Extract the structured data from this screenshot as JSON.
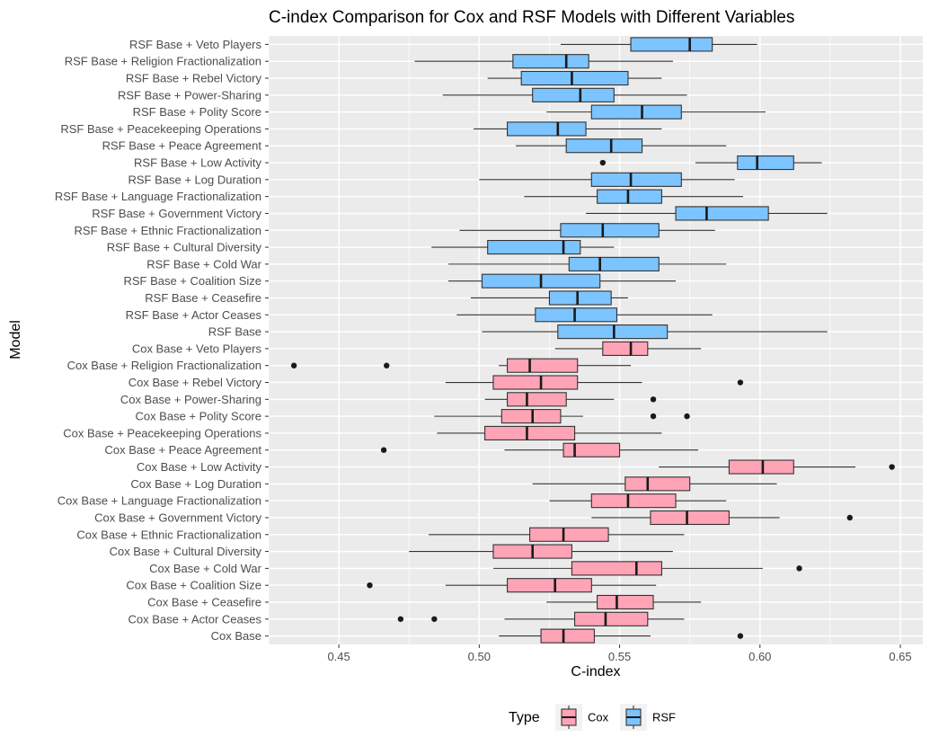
{
  "chart_data": {
    "type": "boxplot",
    "orientation": "horizontal",
    "title": "C-index Comparison for Cox and RSF Models with Different Variables",
    "xlabel": "C-index",
    "ylabel": "Model",
    "xlim": [
      0.425,
      0.658
    ],
    "x_ticks": [
      0.45,
      0.5,
      0.55,
      0.6,
      0.65
    ],
    "x_tick_labels": [
      "0.45",
      "0.50",
      "0.55",
      "0.60",
      "0.65"
    ],
    "grid": true,
    "legend": {
      "title": "Type",
      "position": "bottom",
      "entries": [
        {
          "label": "Cox",
          "color": "#FFA3B6"
        },
        {
          "label": "RSF",
          "color": "#7CC4FF"
        }
      ]
    },
    "colors": {
      "Cox": "#FFA3B6",
      "RSF": "#7CC4FF",
      "panel": "#EBEBEB",
      "grid": "#FFFFFF",
      "outline": "#333333"
    },
    "boxes": [
      {
        "label": "RSF Base + Veto Players",
        "type": "RSF",
        "whisker_low": 0.529,
        "q1": 0.554,
        "median": 0.575,
        "q3": 0.583,
        "whisker_high": 0.599,
        "outliers": []
      },
      {
        "label": "RSF Base + Religion Fractionalization",
        "type": "RSF",
        "whisker_low": 0.477,
        "q1": 0.512,
        "median": 0.531,
        "q3": 0.539,
        "whisker_high": 0.569,
        "outliers": []
      },
      {
        "label": "RSF Base + Rebel Victory",
        "type": "RSF",
        "whisker_low": 0.503,
        "q1": 0.515,
        "median": 0.533,
        "q3": 0.553,
        "whisker_high": 0.565,
        "outliers": []
      },
      {
        "label": "RSF Base + Power-Sharing",
        "type": "RSF",
        "whisker_low": 0.487,
        "q1": 0.519,
        "median": 0.536,
        "q3": 0.548,
        "whisker_high": 0.574,
        "outliers": []
      },
      {
        "label": "RSF Base + Polity Score",
        "type": "RSF",
        "whisker_low": 0.524,
        "q1": 0.54,
        "median": 0.558,
        "q3": 0.572,
        "whisker_high": 0.602,
        "outliers": []
      },
      {
        "label": "RSF Base + Peacekeeping Operations",
        "type": "RSF",
        "whisker_low": 0.498,
        "q1": 0.51,
        "median": 0.528,
        "q3": 0.538,
        "whisker_high": 0.565,
        "outliers": []
      },
      {
        "label": "RSF Base + Peace Agreement",
        "type": "RSF",
        "whisker_low": 0.513,
        "q1": 0.531,
        "median": 0.547,
        "q3": 0.558,
        "whisker_high": 0.588,
        "outliers": []
      },
      {
        "label": "RSF Base + Low Activity",
        "type": "RSF",
        "whisker_low": 0.577,
        "q1": 0.592,
        "median": 0.599,
        "q3": 0.612,
        "whisker_high": 0.622,
        "outliers": [
          0.544
        ]
      },
      {
        "label": "RSF Base + Log Duration",
        "type": "RSF",
        "whisker_low": 0.5,
        "q1": 0.54,
        "median": 0.554,
        "q3": 0.572,
        "whisker_high": 0.591,
        "outliers": []
      },
      {
        "label": "RSF Base + Language Fractionalization",
        "type": "RSF",
        "whisker_low": 0.516,
        "q1": 0.542,
        "median": 0.553,
        "q3": 0.565,
        "whisker_high": 0.594,
        "outliers": []
      },
      {
        "label": "RSF Base + Government Victory",
        "type": "RSF",
        "whisker_low": 0.538,
        "q1": 0.57,
        "median": 0.581,
        "q3": 0.603,
        "whisker_high": 0.624,
        "outliers": []
      },
      {
        "label": "RSF Base + Ethnic Fractionalization",
        "type": "RSF",
        "whisker_low": 0.493,
        "q1": 0.529,
        "median": 0.544,
        "q3": 0.564,
        "whisker_high": 0.584,
        "outliers": []
      },
      {
        "label": "RSF Base + Cultural Diversity",
        "type": "RSF",
        "whisker_low": 0.483,
        "q1": 0.503,
        "median": 0.53,
        "q3": 0.536,
        "whisker_high": 0.548,
        "outliers": []
      },
      {
        "label": "RSF Base + Cold War",
        "type": "RSF",
        "whisker_low": 0.489,
        "q1": 0.532,
        "median": 0.543,
        "q3": 0.564,
        "whisker_high": 0.588,
        "outliers": []
      },
      {
        "label": "RSF Base + Coalition Size",
        "type": "RSF",
        "whisker_low": 0.489,
        "q1": 0.501,
        "median": 0.522,
        "q3": 0.543,
        "whisker_high": 0.57,
        "outliers": []
      },
      {
        "label": "RSF Base + Ceasefire",
        "type": "RSF",
        "whisker_low": 0.497,
        "q1": 0.525,
        "median": 0.535,
        "q3": 0.547,
        "whisker_high": 0.553,
        "outliers": []
      },
      {
        "label": "RSF Base + Actor Ceases",
        "type": "RSF",
        "whisker_low": 0.492,
        "q1": 0.52,
        "median": 0.534,
        "q3": 0.549,
        "whisker_high": 0.583,
        "outliers": []
      },
      {
        "label": "RSF Base",
        "type": "RSF",
        "whisker_low": 0.501,
        "q1": 0.528,
        "median": 0.548,
        "q3": 0.567,
        "whisker_high": 0.624,
        "outliers": []
      },
      {
        "label": "Cox Base + Veto Players",
        "type": "Cox",
        "whisker_low": 0.527,
        "q1": 0.544,
        "median": 0.554,
        "q3": 0.56,
        "whisker_high": 0.579,
        "outliers": []
      },
      {
        "label": "Cox Base + Religion Fractionalization",
        "type": "Cox",
        "whisker_low": 0.507,
        "q1": 0.51,
        "median": 0.518,
        "q3": 0.535,
        "whisker_high": 0.554,
        "outliers": [
          0.434,
          0.467
        ]
      },
      {
        "label": "Cox Base + Rebel Victory",
        "type": "Cox",
        "whisker_low": 0.488,
        "q1": 0.505,
        "median": 0.522,
        "q3": 0.535,
        "whisker_high": 0.558,
        "outliers": [
          0.593
        ]
      },
      {
        "label": "Cox Base + Power-Sharing",
        "type": "Cox",
        "whisker_low": 0.502,
        "q1": 0.51,
        "median": 0.517,
        "q3": 0.531,
        "whisker_high": 0.548,
        "outliers": [
          0.562
        ]
      },
      {
        "label": "Cox Base + Polity Score",
        "type": "Cox",
        "whisker_low": 0.484,
        "q1": 0.508,
        "median": 0.519,
        "q3": 0.529,
        "whisker_high": 0.537,
        "outliers": [
          0.562,
          0.574
        ]
      },
      {
        "label": "Cox Base + Peacekeeping Operations",
        "type": "Cox",
        "whisker_low": 0.485,
        "q1": 0.502,
        "median": 0.517,
        "q3": 0.534,
        "whisker_high": 0.565,
        "outliers": []
      },
      {
        "label": "Cox Base + Peace Agreement",
        "type": "Cox",
        "whisker_low": 0.509,
        "q1": 0.53,
        "median": 0.534,
        "q3": 0.55,
        "whisker_high": 0.578,
        "outliers": [
          0.466
        ]
      },
      {
        "label": "Cox Base + Low Activity",
        "type": "Cox",
        "whisker_low": 0.564,
        "q1": 0.589,
        "median": 0.601,
        "q3": 0.612,
        "whisker_high": 0.634,
        "outliers": [
          0.647
        ]
      },
      {
        "label": "Cox Base + Log Duration",
        "type": "Cox",
        "whisker_low": 0.519,
        "q1": 0.552,
        "median": 0.56,
        "q3": 0.575,
        "whisker_high": 0.606,
        "outliers": []
      },
      {
        "label": "Cox Base + Language Fractionalization",
        "type": "Cox",
        "whisker_low": 0.525,
        "q1": 0.54,
        "median": 0.553,
        "q3": 0.57,
        "whisker_high": 0.588,
        "outliers": []
      },
      {
        "label": "Cox Base + Government Victory",
        "type": "Cox",
        "whisker_low": 0.54,
        "q1": 0.561,
        "median": 0.574,
        "q3": 0.589,
        "whisker_high": 0.607,
        "outliers": [
          0.632
        ]
      },
      {
        "label": "Cox Base + Ethnic Fractionalization",
        "type": "Cox",
        "whisker_low": 0.482,
        "q1": 0.518,
        "median": 0.53,
        "q3": 0.546,
        "whisker_high": 0.573,
        "outliers": []
      },
      {
        "label": "Cox Base + Cultural Diversity",
        "type": "Cox",
        "whisker_low": 0.475,
        "q1": 0.505,
        "median": 0.519,
        "q3": 0.533,
        "whisker_high": 0.569,
        "outliers": []
      },
      {
        "label": "Cox Base + Cold War",
        "type": "Cox",
        "whisker_low": 0.505,
        "q1": 0.533,
        "median": 0.556,
        "q3": 0.565,
        "whisker_high": 0.601,
        "outliers": [
          0.614
        ]
      },
      {
        "label": "Cox Base + Coalition Size",
        "type": "Cox",
        "whisker_low": 0.488,
        "q1": 0.51,
        "median": 0.527,
        "q3": 0.54,
        "whisker_high": 0.563,
        "outliers": [
          0.461
        ]
      },
      {
        "label": "Cox Base + Ceasefire",
        "type": "Cox",
        "whisker_low": 0.524,
        "q1": 0.542,
        "median": 0.549,
        "q3": 0.562,
        "whisker_high": 0.579,
        "outliers": []
      },
      {
        "label": "Cox Base + Actor Ceases",
        "type": "Cox",
        "whisker_low": 0.509,
        "q1": 0.534,
        "median": 0.545,
        "q3": 0.56,
        "whisker_high": 0.573,
        "outliers": [
          0.472,
          0.484
        ]
      },
      {
        "label": "Cox Base",
        "type": "Cox",
        "whisker_low": 0.507,
        "q1": 0.522,
        "median": 0.53,
        "q3": 0.541,
        "whisker_high": 0.561,
        "outliers": [
          0.593
        ]
      }
    ]
  }
}
